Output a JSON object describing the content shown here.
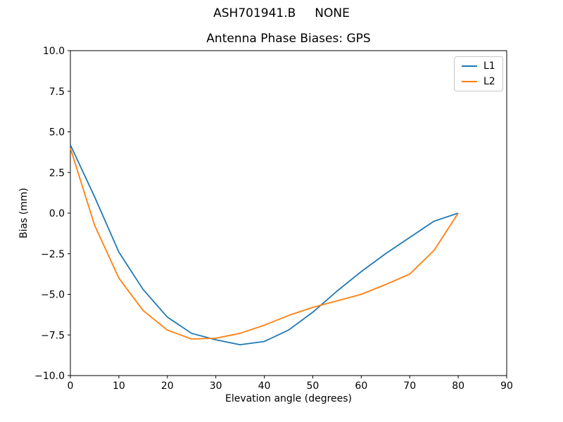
{
  "figure": {
    "suptitle": "ASH701941.B     NONE",
    "background": "#ffffff",
    "spine_color": "#000000",
    "tick_color": "#000000"
  },
  "chart_data": {
    "type": "line",
    "suptitle": "ASH701941.B     NONE",
    "title": "Antenna Phase Biases: GPS",
    "xlabel": "Elevation angle (degrees)",
    "ylabel": "Bias (mm)",
    "xlim": [
      0,
      90
    ],
    "ylim": [
      -10,
      10
    ],
    "grid": false,
    "xticks": {
      "values": [
        0,
        10,
        20,
        30,
        40,
        50,
        60,
        70,
        80,
        90
      ],
      "labels": [
        "0",
        "10",
        "20",
        "30",
        "40",
        "50",
        "60",
        "70",
        "80",
        "90"
      ]
    },
    "yticks": {
      "values": [
        10,
        7.5,
        5,
        2.5,
        0,
        -2.5,
        -5,
        -7.5,
        -10
      ],
      "labels": [
        "10.0",
        "7.5",
        "5.0",
        "2.5",
        "0.0",
        "−2.5",
        "−5.0",
        "−7.5",
        "−10.0"
      ]
    },
    "legend": {
      "location": "upper right",
      "entries": [
        "L1",
        "L2"
      ]
    },
    "x": [
      0,
      5,
      10,
      15,
      20,
      25,
      30,
      35,
      40,
      45,
      50,
      55,
      60,
      65,
      70,
      75,
      80
    ],
    "series": [
      {
        "name": "L1",
        "color": "#1f77b4",
        "values": [
          4.2,
          1.0,
          -2.4,
          -4.7,
          -6.4,
          -7.4,
          -7.8,
          -8.1,
          -7.9,
          -7.2,
          -6.1,
          -4.8,
          -3.6,
          -2.5,
          -1.5,
          -0.5,
          0.0
        ]
      },
      {
        "name": "L2",
        "color": "#ff7f0e",
        "values": [
          4.0,
          -0.75,
          -4.0,
          -6.0,
          -7.2,
          -7.75,
          -7.7,
          -7.4,
          -6.9,
          -6.3,
          -5.8,
          -5.4,
          -5.0,
          -4.4,
          -3.75,
          -2.3,
          0.0
        ]
      }
    ]
  }
}
